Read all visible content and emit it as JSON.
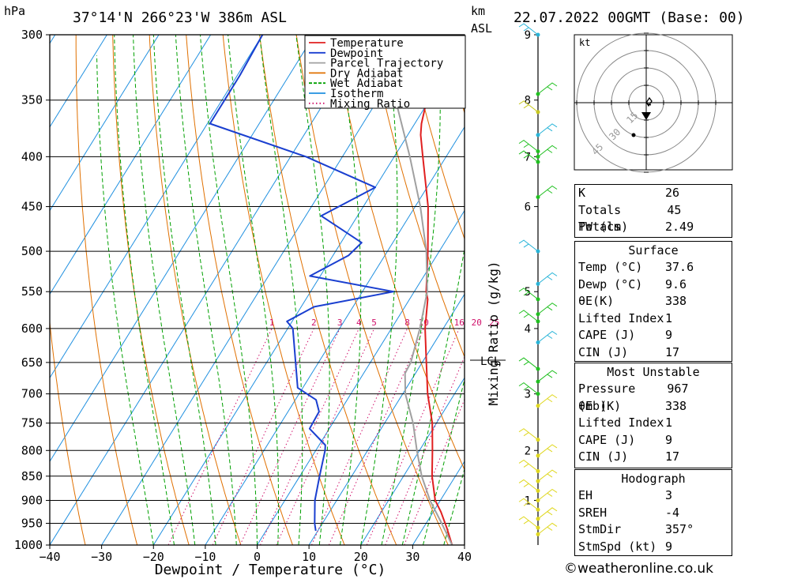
{
  "header": {
    "unit_left": "hPa",
    "location": "37°14'N  266°23'W  386m  ASL",
    "unit_right": "km",
    "unit_right2": "ASL",
    "datetime": "22.07.2022  00GMT  (Base: 00)"
  },
  "footer": {
    "xlabel": "Dewpoint / Temperature (°C)",
    "mixing_label": "Mixing Ratio (g/kg)",
    "lcl_label": "LCL",
    "credit": "©weatheronline.co.uk"
  },
  "hodograph": {
    "unit": "kt",
    "ring_labels": [
      "15",
      "30",
      "45"
    ]
  },
  "chart_data": {
    "type": "line",
    "title": "37°14'N 266°23'W 386m ASL",
    "xlabel": "Dewpoint / Temperature (°C)",
    "ylabel": "hPa",
    "xlim": [
      -40,
      40
    ],
    "ylim": [
      1000,
      300
    ],
    "y_scale": "log",
    "x_ticks": [
      -40,
      -30,
      -20,
      -10,
      0,
      10,
      20,
      30,
      40
    ],
    "y_ticks": [
      300,
      350,
      400,
      450,
      500,
      550,
      600,
      650,
      700,
      750,
      800,
      850,
      900,
      950,
      1000
    ],
    "km_ticks": [
      {
        "km": 1,
        "p": 900
      },
      {
        "km": 2,
        "p": 800
      },
      {
        "km": 3,
        "p": 700
      },
      {
        "km": 4,
        "p": 600
      },
      {
        "km": 5,
        "p": 550
      },
      {
        "km": 6,
        "p": 450
      },
      {
        "km": 7,
        "p": 400
      },
      {
        "km": 8,
        "p": 350
      },
      {
        "km": 9,
        "p": 300
      }
    ],
    "mixing_ratio_labels": [
      "1",
      "2",
      "3",
      "4",
      "5",
      "8",
      "10",
      "16",
      "20",
      "25"
    ],
    "mixing_ratio_values": [
      1,
      2,
      3,
      4,
      5,
      8,
      10,
      16,
      20,
      25
    ],
    "legend": [
      "Temperature",
      "Dewpoint",
      "Parcel Trajectory",
      "Dry Adiabat",
      "Wet Adiabat",
      "Isotherm",
      "Mixing Ratio"
    ],
    "legend_position": "top-center",
    "grid": true,
    "colors": {
      "Temperature": "#e02020",
      "Dewpoint": "#1a3fd0",
      "Parcel Trajectory": "#a0a0a0",
      "Dry Adiabat": "#e07000",
      "Wet Adiabat": "#00a000",
      "Isotherm": "#2090e0",
      "Mixing Ratio": "#d0106a"
    },
    "series": [
      {
        "name": "Temperature",
        "points": [
          [
            1000,
            37.6
          ],
          [
            960,
            34.5
          ],
          [
            925,
            31.5
          ],
          [
            900,
            29.0
          ],
          [
            850,
            25.5
          ],
          [
            800,
            22.5
          ],
          [
            750,
            19.2
          ],
          [
            700,
            14.8
          ],
          [
            650,
            10.8
          ],
          [
            600,
            6.5
          ],
          [
            560,
            3.5
          ],
          [
            550,
            2.3
          ],
          [
            500,
            -2.2
          ],
          [
            450,
            -7.5
          ],
          [
            400,
            -14.5
          ],
          [
            380,
            -17.5
          ],
          [
            370,
            -18.7
          ],
          [
            350,
            -20.5
          ],
          [
            320,
            -23.5
          ],
          [
            300,
            -26.5
          ]
        ]
      },
      {
        "name": "Dewpoint",
        "points": [
          [
            967,
            9.6
          ],
          [
            950,
            8.5
          ],
          [
            900,
            5.8
          ],
          [
            850,
            3.8
          ],
          [
            800,
            1.8
          ],
          [
            790,
            1.2
          ],
          [
            760,
            -3.8
          ],
          [
            730,
            -4.0
          ],
          [
            710,
            -6.0
          ],
          [
            690,
            -11.0
          ],
          [
            600,
            -19.0
          ],
          [
            590,
            -21.0
          ],
          [
            570,
            -17.5
          ],
          [
            550,
            -4.0
          ],
          [
            530,
            -22.0
          ],
          [
            505,
            -17.0
          ],
          [
            490,
            -16.0
          ],
          [
            460,
            -27.0
          ],
          [
            430,
            -20.0
          ],
          [
            400,
            -37.0
          ],
          [
            370,
            -59.5
          ],
          [
            350,
            -59.5
          ],
          [
            330,
            -59.5
          ],
          [
            300,
            -60.0
          ]
        ]
      },
      {
        "name": "Parcel Trajectory",
        "points": [
          [
            1000,
            37.6
          ],
          [
            950,
            33.0
          ],
          [
            900,
            28.0
          ],
          [
            850,
            23.5
          ],
          [
            800,
            19.5
          ],
          [
            750,
            15.5
          ],
          [
            700,
            10.5
          ],
          [
            667,
            8.0
          ],
          [
            650,
            7.8
          ],
          [
            600,
            5.5
          ],
          [
            550,
            2.5
          ],
          [
            500,
            -2.5
          ],
          [
            450,
            -9.0
          ],
          [
            400,
            -17.0
          ],
          [
            350,
            -26.5
          ],
          [
            300,
            -37.5
          ]
        ]
      }
    ]
  },
  "indices": {
    "K": {
      "label": "K",
      "value": "26"
    },
    "TT": {
      "label": "Totals Totals",
      "value": "45"
    },
    "PW": {
      "label": "PW (cm)",
      "value": "2.49"
    }
  },
  "surface": {
    "title": "Surface",
    "rows": [
      {
        "label": "Temp (°C)",
        "value": "37.6"
      },
      {
        "label": "Dewp (°C)",
        "value": "9.6"
      },
      {
        "label": "θE(K)",
        "value": "338"
      },
      {
        "label": "Lifted Index",
        "value": "1"
      },
      {
        "label": "CAPE (J)",
        "value": "9"
      },
      {
        "label": "CIN (J)",
        "value": "17"
      }
    ]
  },
  "most_unstable": {
    "title": "Most Unstable",
    "rows": [
      {
        "label": "Pressure (mb)",
        "value": "967"
      },
      {
        "label": "θE (K)",
        "value": "338"
      },
      {
        "label": "Lifted Index",
        "value": "1"
      },
      {
        "label": "CAPE (J)",
        "value": "9"
      },
      {
        "label": "CIN (J)",
        "value": "17"
      }
    ]
  },
  "hodograph_stats": {
    "title": "Hodograph",
    "rows": [
      {
        "label": "EH",
        "value": "3"
      },
      {
        "label": "SREH",
        "value": "-4"
      },
      {
        "label": "StmDir",
        "value": "357°"
      },
      {
        "label": "StmSpd (kt)",
        "value": "9"
      }
    ]
  }
}
